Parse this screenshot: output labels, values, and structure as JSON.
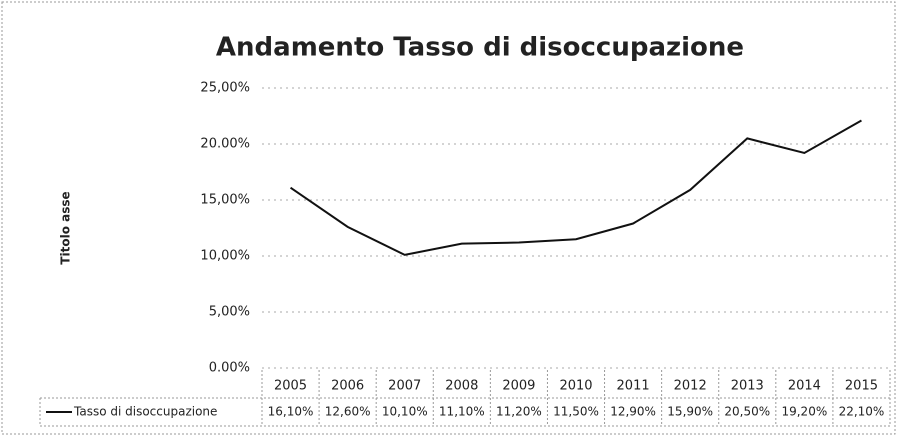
{
  "chart_data": {
    "type": "line",
    "title": "Andamento Tasso di disoccupazione",
    "y_label": "Titolo asse",
    "categories": [
      "2005",
      "2006",
      "2007",
      "2008",
      "2009",
      "2010",
      "2011",
      "2012",
      "2013",
      "2014",
      "2015"
    ],
    "series": [
      {
        "name": "Tasso di disoccupazione",
        "color": "#111111",
        "values": [
          16.1,
          12.6,
          10.1,
          11.1,
          11.2,
          11.5,
          12.9,
          15.9,
          20.5,
          19.2,
          22.1
        ],
        "value_labels": [
          "16,10%",
          "12,60%",
          "10,10%",
          "11,10%",
          "11,20%",
          "11,50%",
          "12,90%",
          "15,90%",
          "20,50%",
          "19,20%",
          "22,10%"
        ]
      }
    ],
    "ylim": [
      0,
      25
    ],
    "yticks": [
      {
        "value": 0,
        "label": "0.00%"
      },
      {
        "value": 5,
        "label": "5,00%"
      },
      {
        "value": 10,
        "label": "10,00%"
      },
      {
        "value": 15,
        "label": "15,00%"
      },
      {
        "value": 20,
        "label": "20.00%"
      },
      {
        "value": 25,
        "label": "25,00%"
      }
    ],
    "grid": true
  }
}
